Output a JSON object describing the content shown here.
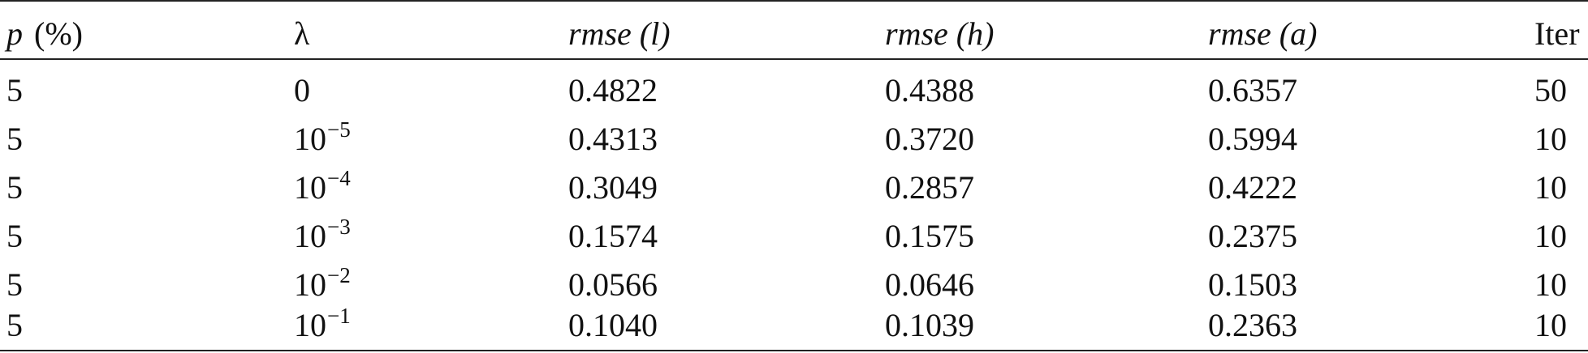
{
  "table": {
    "headers": {
      "p_symbol": "p",
      "p_unit": "(%)",
      "lambda": "λ",
      "rmse_l": "rmse (l)",
      "rmse_h": "rmse (h)",
      "rmse_a": "rmse (a)",
      "iter": "Iter"
    },
    "rows": [
      {
        "p": "5",
        "lambda_base": "0",
        "lambda_exp": "",
        "rmse_l": "0.4822",
        "rmse_h": "0.4388",
        "rmse_a": "0.6357",
        "iter": "50"
      },
      {
        "p": "5",
        "lambda_base": "10",
        "lambda_exp": "−5",
        "rmse_l": "0.4313",
        "rmse_h": "0.3720",
        "rmse_a": "0.5994",
        "iter": "10"
      },
      {
        "p": "5",
        "lambda_base": "10",
        "lambda_exp": "−4",
        "rmse_l": "0.3049",
        "rmse_h": "0.2857",
        "rmse_a": "0.4222",
        "iter": "10"
      },
      {
        "p": "5",
        "lambda_base": "10",
        "lambda_exp": "−3",
        "rmse_l": "0.1574",
        "rmse_h": "0.1575",
        "rmse_a": "0.2375",
        "iter": "10"
      },
      {
        "p": "5",
        "lambda_base": "10",
        "lambda_exp": "−2",
        "rmse_l": "0.0566",
        "rmse_h": "0.0646",
        "rmse_a": "0.1503",
        "iter": "10"
      },
      {
        "p": "5",
        "lambda_base": "10",
        "lambda_exp": "−1",
        "rmse_l": "0.1040",
        "rmse_h": "0.1039",
        "rmse_a": "0.2363",
        "iter": "10"
      }
    ]
  }
}
